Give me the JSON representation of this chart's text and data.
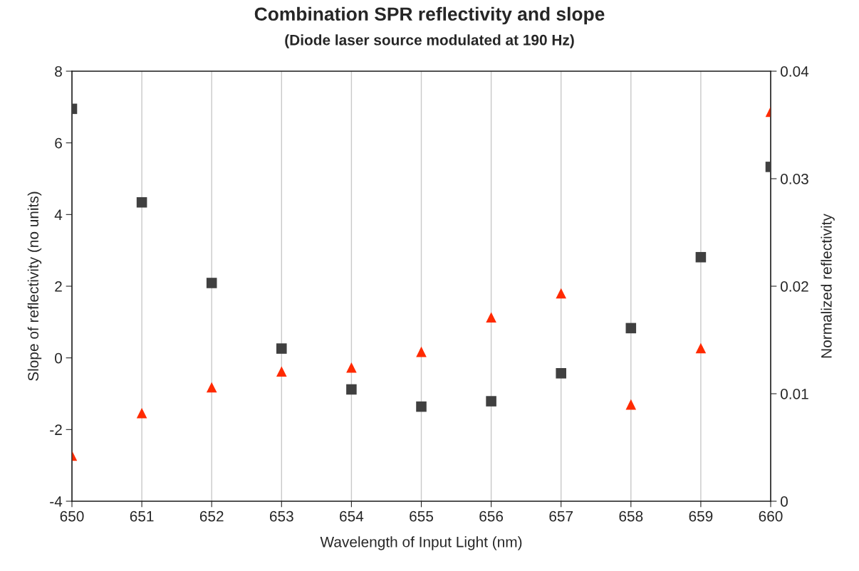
{
  "chart_data": {
    "type": "scatter",
    "title": "Combination SPR reflectivity and slope",
    "subtitle": "(Diode laser source modulated at 190 Hz)",
    "xlabel": "Wavelength of Input Light (nm)",
    "ylabel": "Slope of reflectivity (no units)",
    "y2label": "Normalized reflectivity",
    "x": [
      650,
      651,
      652,
      653,
      654,
      655,
      656,
      657,
      658,
      659,
      660
    ],
    "series": [
      {
        "color": "#ff2a00",
        "marker": "triangle",
        "values": [
          -2.73,
          -1.54,
          -0.82,
          -0.38,
          -0.27,
          0.17,
          1.13,
          1.8,
          -1.3,
          0.27,
          6.87
        ]
      },
      {
        "color": "#404040",
        "marker": "square",
        "axis": "y2",
        "values": [
          0.0365,
          0.0278,
          0.0203,
          0.0142,
          0.0104,
          0.0088,
          0.0093,
          0.0119,
          0.0161,
          0.0227,
          0.0311
        ]
      }
    ],
    "xlim": [
      650,
      660
    ],
    "xticks": [
      650,
      651,
      652,
      653,
      654,
      655,
      656,
      657,
      658,
      659,
      660
    ],
    "ylim": [
      -4,
      8
    ],
    "yticks": [
      -4,
      -2,
      0,
      2,
      4,
      6,
      8
    ],
    "y2lim": [
      0,
      0.04
    ],
    "y2ticks": [
      0,
      0.01,
      0.02,
      0.03,
      0.04
    ],
    "grid": "x"
  }
}
